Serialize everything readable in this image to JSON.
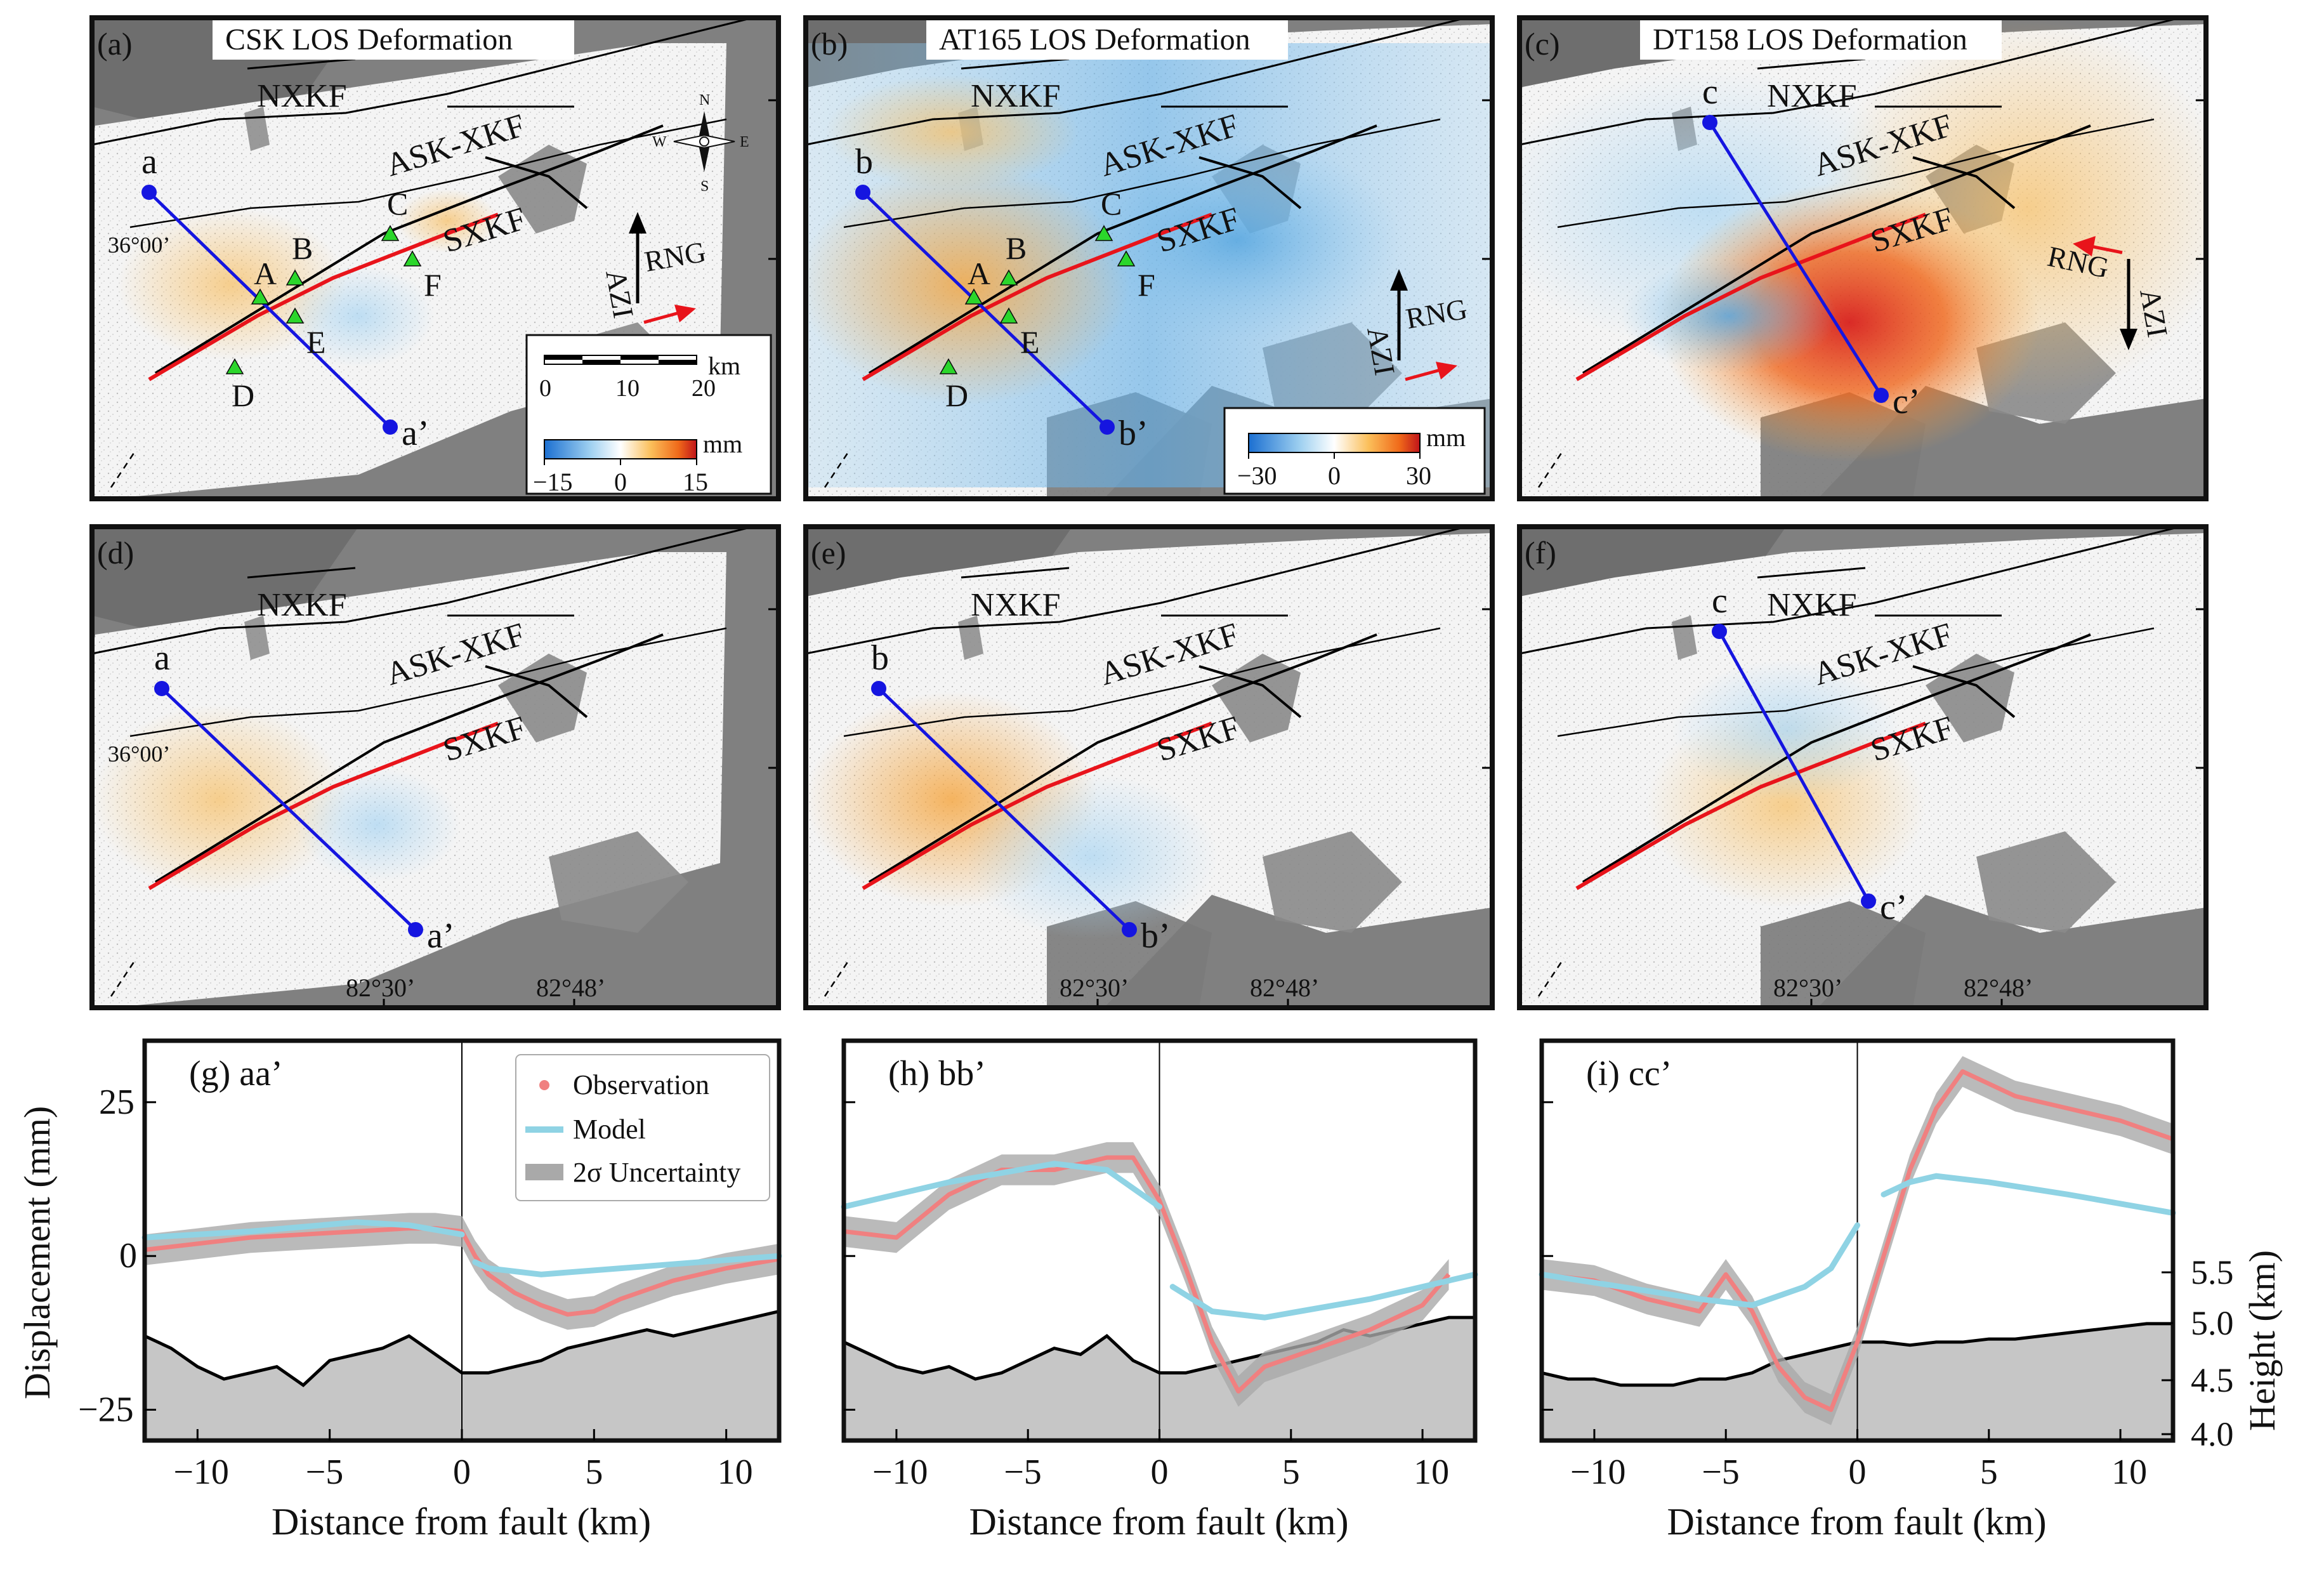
{
  "colors": {
    "fault_red": "#e8141b",
    "profile_blue": "#1515e0",
    "station_green": "#2bd62b",
    "observation": "#f08080",
    "model": "#8fd3e4",
    "uncertainty": "#a9a9a9",
    "topography": "#c6c6c6",
    "hillshade": "#7a7a7a"
  },
  "map_panels": [
    {
      "id": "a",
      "label": "(a)",
      "title": "CSK LOS Deformation",
      "profile_start": "a",
      "profile_end": "a’",
      "colorbar": {
        "min": "−15",
        "mid": "0",
        "max": "15",
        "unit": "mm"
      }
    },
    {
      "id": "b",
      "label": "(b)",
      "title": "AT165 LOS Deformation",
      "profile_start": "b",
      "profile_end": "b’",
      "colorbar": {
        "min": "−30",
        "mid": "0",
        "max": "30",
        "unit": "mm"
      }
    },
    {
      "id": "c",
      "label": "(c)",
      "title": "DT158 LOS Deformation",
      "profile_start": "c",
      "profile_end": "c’"
    },
    {
      "id": "d",
      "label": "(d)",
      "profile_start": "a",
      "profile_end": "a’"
    },
    {
      "id": "e",
      "label": "(e)",
      "profile_start": "b",
      "profile_end": "b’"
    },
    {
      "id": "f",
      "label": "(f)",
      "profile_start": "c",
      "profile_end": "c’"
    }
  ],
  "fault_labels": {
    "nxkf": "NXKF",
    "askxkf": "ASK-XKF",
    "sxkf": "SXKF"
  },
  "stations": [
    "A",
    "B",
    "C",
    "D",
    "E",
    "F"
  ],
  "latitude_label": "36°00’",
  "longitude_labels": [
    "82°30’",
    "82°48’"
  ],
  "scalebar": {
    "unit": "km",
    "ticks": [
      "0",
      "10",
      "20"
    ]
  },
  "compass": {
    "n": "N",
    "s": "S",
    "e": "E",
    "w": "W"
  },
  "geometry_labels": {
    "azi": "AZI",
    "rng": "RNG"
  },
  "profiles": {
    "ylabel": "Displacement (mm)",
    "ylabel_right": "Height (km)",
    "xlabel": "Distance from fault (km)",
    "legend": [
      "Observation",
      "Model",
      "2σ Uncertainty"
    ],
    "panels": [
      {
        "label": "(g)",
        "name": "aa’"
      },
      {
        "label": "(h)",
        "name": "bb’"
      },
      {
        "label": "(i)",
        "name": "cc’"
      }
    ]
  },
  "chart_data": [
    {
      "type": "line",
      "title": "(g) aa’",
      "xlabel": "Distance from fault (km)",
      "ylabel": "Displacement (mm)",
      "xlim": [
        -12,
        12
      ],
      "ylim": [
        -30,
        35
      ],
      "yticks": [
        -25,
        0,
        25
      ],
      "xticks": [
        -10,
        -5,
        0,
        5,
        10
      ],
      "series": [
        {
          "name": "Observation",
          "x": [
            -12,
            -10,
            -8,
            -6,
            -4,
            -2,
            -1,
            0,
            0.5,
            1,
            2,
            3,
            4,
            5,
            6,
            8,
            10,
            12
          ],
          "y": [
            1,
            2,
            3,
            3.5,
            4,
            4.5,
            4.5,
            4,
            0,
            -3,
            -6,
            -8,
            -9.5,
            -9,
            -7,
            -4,
            -2,
            -0.5
          ]
        },
        {
          "name": "Model",
          "x": [
            -12,
            -8,
            -4,
            -2,
            0,
            0.5,
            1,
            3,
            6,
            9,
            12
          ],
          "y": [
            3,
            4,
            5.5,
            5,
            3.5,
            -1,
            -2,
            -3,
            -2,
            -1,
            0
          ]
        }
      ]
    },
    {
      "type": "line",
      "title": "(h) bb’",
      "xlabel": "Distance from fault (km)",
      "xlim": [
        -12,
        12
      ],
      "ylim": [
        -30,
        35
      ],
      "xticks": [
        -10,
        -5,
        0,
        5,
        10
      ],
      "series": [
        {
          "name": "Observation",
          "x": [
            -12,
            -10,
            -8,
            -6,
            -4,
            -2,
            -1,
            0,
            1,
            2,
            3,
            4,
            6,
            8,
            10,
            11
          ],
          "y": [
            4,
            3,
            10,
            14,
            14,
            16,
            16,
            9,
            -2,
            -14,
            -22,
            -18,
            -15,
            -12,
            -8,
            -3
          ]
        },
        {
          "name": "Model",
          "x": [
            -12,
            -8,
            -4,
            -2,
            0,
            0.5,
            2,
            4,
            8,
            12
          ],
          "y": [
            8,
            12,
            15,
            14,
            8,
            -5,
            -9,
            -10,
            -7,
            -3
          ]
        }
      ]
    },
    {
      "type": "line",
      "title": "(i) cc’",
      "xlabel": "Distance from fault (km)",
      "xlim": [
        -12,
        12
      ],
      "ylim": [
        -30,
        35
      ],
      "xticks": [
        -10,
        -5,
        0,
        5,
        10
      ],
      "series": [
        {
          "name": "Observation",
          "x": [
            -12,
            -10,
            -8,
            -6,
            -5,
            -4,
            -3,
            -2,
            -1,
            0,
            1,
            2,
            3,
            4,
            6,
            8,
            10,
            12
          ],
          "y": [
            -3,
            -4,
            -7,
            -9,
            -3,
            -9,
            -18,
            -23,
            -25,
            -14,
            0,
            14,
            24,
            30,
            26,
            24,
            22,
            19
          ]
        },
        {
          "name": "Model",
          "x": [
            -12,
            -9,
            -6,
            -4,
            -2,
            -1,
            0,
            1,
            2,
            3,
            5,
            8,
            12
          ],
          "y": [
            -3,
            -5,
            -7,
            -8,
            -5,
            -2,
            5,
            10,
            12,
            13,
            12,
            10,
            7
          ]
        }
      ]
    }
  ]
}
